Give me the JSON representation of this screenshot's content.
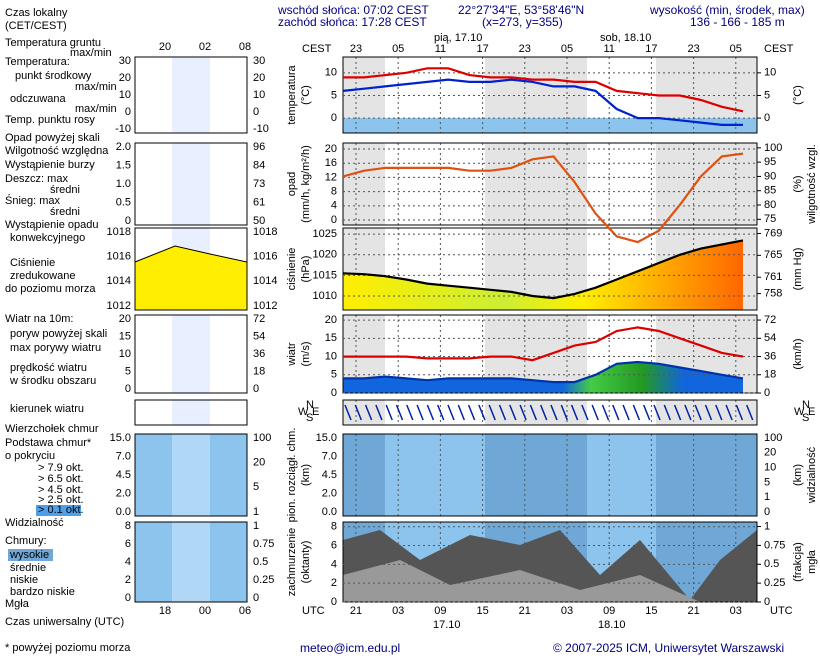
{
  "header": {
    "sunrise": "wschód słońca: 07:02 CEST",
    "sunset": "zachód słońca: 17:28 CEST",
    "coords": "22°27'34\"E, 53°58'46\"N",
    "grid": "(x=273,  y=355)",
    "elev_title": "wysokość (min, środek, max)",
    "elev": "136 - 166 - 185 m",
    "day1": "pią, 17.10",
    "day2": "sob, 18.10",
    "tz_top": "CEST",
    "tz_bottom": "UTC",
    "top_hours": [
      "23",
      "05",
      "11",
      "17",
      "23",
      "05",
      "11",
      "17",
      "23",
      "05"
    ],
    "bottom_hours": [
      "21",
      "03",
      "09",
      "15",
      "21",
      "03",
      "09",
      "15",
      "21",
      "03"
    ],
    "date1": "17.10",
    "date2": "18.10"
  },
  "legend": [
    "Czas lokalny",
    "(CET/CEST)",
    "Temperatura gruntu",
    "max/min",
    "Temperatura:",
    "punkt środkowy",
    "max/min",
    "odczuwana",
    "max/min",
    "Temp. punktu rosy",
    "Opad powyżej skali",
    "Wilgotność względna",
    "Wystąpienie burzy",
    "Deszcz: max",
    "średni",
    "Śnieg:  max",
    "średni",
    "Wystąpienie opadu",
    "konwekcyjnego",
    "Ciśnienie",
    "zredukowane",
    "do poziomu morza",
    "Wiatr na 10m:",
    "poryw powyżej skali",
    "max porywy wiatru",
    "prędkość wiatru",
    "w środku obszaru",
    "kierunek wiatru",
    "Wierzchołek chmur",
    "Podstawa chmur*",
    "o pokryciu",
    "> 7.9 okt.",
    "> 6.5 okt.",
    "> 4.5 okt.",
    "> 2.5 okt.",
    "> 0.1 okt.",
    "Widzialność",
    "Chmury:",
    "wysokie",
    "średnie",
    "niskie",
    "bardzo niskie",
    "Mgła",
    "Czas uniwersalny (UTC)",
    "* powyżej poziomu morza"
  ],
  "mini": {
    "top_hours": [
      "20",
      "02",
      "08"
    ],
    "bottom_hours": [
      "18",
      "00",
      "06"
    ],
    "panels": [
      {
        "left": [
          "30",
          "20",
          "10",
          "0",
          "-10"
        ],
        "right": [
          "30",
          "20",
          "10",
          "0",
          "-10"
        ]
      },
      {
        "left": [
          "2.0",
          "1.5",
          "1.0",
          "0.5",
          "0"
        ],
        "right": [
          "96",
          "84",
          "73",
          "61",
          "50"
        ]
      },
      {
        "left": [
          "1018",
          "1016",
          "1014",
          "1012"
        ],
        "right": [
          "1018",
          "1016",
          "1014",
          "1012"
        ]
      },
      {
        "left": [
          "20",
          "15",
          "10",
          "5",
          "0"
        ],
        "right": [
          "72",
          "54",
          "36",
          "18",
          "0"
        ]
      },
      {
        "left": [],
        "right": []
      },
      {
        "left": [
          "15.0",
          "7.0",
          "4.5",
          "2.0",
          "0.0"
        ],
        "right": [
          "100",
          "20",
          "5",
          "1"
        ]
      },
      {
        "left": [
          "8",
          "6",
          "4",
          "2",
          "0"
        ],
        "right": [
          "1",
          "0.75",
          "0.5",
          "0.25",
          "0"
        ]
      }
    ]
  },
  "footer": {
    "email": "meteo@icm.edu.pl",
    "copyright": "© 2007-2025 ICM, Uniwersytet Warszawski"
  },
  "chart_data": [
    {
      "type": "line",
      "ylabel": [
        "temperatura",
        "(°C)"
      ],
      "y2label": [
        "(°C)"
      ],
      "x": [
        0,
        3,
        6,
        9,
        12,
        15,
        18,
        21,
        24,
        27,
        30,
        33,
        36,
        39,
        42,
        45,
        48,
        51,
        54,
        57
      ],
      "xlim": [
        0,
        59
      ],
      "ylim": [
        -3.3,
        13.5
      ],
      "yticks": [
        0,
        5,
        10
      ],
      "y2lim": [
        -3.3,
        13.5
      ],
      "y2ticks": [
        0,
        5,
        10
      ],
      "series": [
        {
          "color": "#dd0000",
          "values": [
            9,
            9,
            9.5,
            10,
            11,
            11,
            9.5,
            9,
            9,
            8.5,
            8.5,
            8,
            8,
            6,
            5.5,
            5,
            5,
            4,
            2.5,
            1.5
          ]
        },
        {
          "color": "#0022cc",
          "values": [
            6,
            6.5,
            7,
            7.5,
            8,
            8.5,
            8,
            8,
            8.5,
            8,
            7,
            7,
            6,
            2,
            0,
            0,
            -0.5,
            -1,
            -1.5,
            -1.5
          ]
        }
      ]
    },
    {
      "type": "line",
      "ylabel": [
        "opad",
        "(mm/h, kg/m²/h)"
      ],
      "y2label": [
        "(%)",
        "wilgotność wzgl."
      ],
      "x": [
        0,
        3,
        6,
        9,
        12,
        15,
        18,
        21,
        24,
        27,
        30,
        33,
        36,
        39,
        42,
        45,
        48,
        51,
        54,
        57
      ],
      "xlim": [
        0,
        59
      ],
      "ylim": [
        -1.4,
        21.7
      ],
      "yticks": [
        0,
        4,
        8,
        12,
        16,
        20
      ],
      "y2lim": [
        73,
        101.7
      ],
      "y2ticks": [
        75,
        80,
        85,
        90,
        95,
        100
      ],
      "series": [
        {
          "color": "#e05010",
          "axis": "y2",
          "values": [
            90,
            92,
            93,
            93,
            93,
            93,
            92,
            92,
            93,
            96,
            97,
            88,
            77,
            69,
            67,
            71,
            80,
            90,
            97,
            98
          ]
        }
      ]
    },
    {
      "type": "area",
      "ylabel": [
        "ciśnienie",
        "(hPa)"
      ],
      "y2label": [
        "(mm Hg)"
      ],
      "x": [
        0,
        3,
        6,
        9,
        12,
        15,
        18,
        21,
        24,
        27,
        30,
        33,
        36,
        39,
        42,
        45,
        48,
        51,
        54,
        57
      ],
      "xlim": [
        0,
        59
      ],
      "ylim": [
        1006.6,
        1026.5
      ],
      "yticks": [
        1010,
        1015,
        1020,
        1025
      ],
      "y2lim": [
        755,
        770
      ],
      "y2ticks": [
        758,
        761,
        765,
        769
      ],
      "series": [
        {
          "color": "#000000",
          "values": [
            1015.5,
            1015.3,
            1014.8,
            1014,
            1013,
            1012.5,
            1012,
            1011.5,
            1011,
            1010,
            1009.5,
            1010.5,
            1012,
            1014,
            1016,
            1018,
            1020,
            1021.5,
            1022.5,
            1023.5
          ]
        }
      ]
    },
    {
      "type": "area",
      "ylabel": [
        "wiatr",
        "(m/s)"
      ],
      "y2label": [
        "(km/h)"
      ],
      "x": [
        0,
        3,
        6,
        9,
        12,
        15,
        18,
        21,
        24,
        27,
        30,
        33,
        36,
        39,
        42,
        45,
        48,
        51,
        54,
        57
      ],
      "xlim": [
        0,
        59
      ],
      "ylim": [
        0,
        21.4
      ],
      "yticks": [
        0,
        5,
        10,
        15,
        20
      ],
      "y2lim": [
        0,
        77
      ],
      "y2ticks": [
        0,
        18,
        36,
        54,
        72
      ],
      "series": [
        {
          "color": "#0033aa",
          "values": [
            4,
            4,
            4.5,
            4,
            3.5,
            4,
            4,
            4,
            4,
            3.5,
            3,
            3,
            5,
            8,
            8.5,
            8,
            7,
            6,
            5,
            4
          ]
        },
        {
          "color": "#dd0000",
          "values": [
            10,
            10,
            10,
            10,
            9.5,
            9.5,
            9.5,
            10,
            10,
            9,
            11,
            13,
            14,
            17,
            18,
            17,
            15,
            13,
            11,
            10
          ]
        }
      ]
    },
    {
      "type": "arrows",
      "compass": [
        "W",
        "S",
        "E",
        "N"
      ]
    },
    {
      "type": "labels",
      "ylabel": [
        "pion. rozciągł. chm.",
        "(km)"
      ],
      "y2label": [
        "(km)",
        "widzialność"
      ],
      "ytick_labels": [
        "15.0",
        "7.0",
        "4.5",
        "2.0",
        "0.0"
      ],
      "y2tick_labels": [
        "100",
        "20",
        "10",
        "5",
        "1",
        "0"
      ]
    },
    {
      "type": "empty",
      "ylabel": [
        "zachmurzenie",
        "(oktanty)"
      ],
      "y2label": [
        "(frakcja)",
        "mgła"
      ],
      "ylim": [
        0,
        8.5
      ],
      "yticks": [
        0,
        2,
        4,
        6,
        8
      ],
      "y2lim": [
        0,
        1.06
      ],
      "y2ticks": [
        0,
        0.25,
        0.5,
        0.75,
        1
      ]
    }
  ]
}
